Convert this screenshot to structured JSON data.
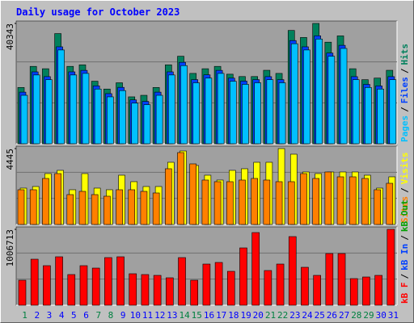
{
  "chart_data": [
    {
      "type": "bar",
      "title": "Daily usage for October 2023",
      "ylim": [
        0,
        40343
      ],
      "yticks": [
        40343
      ],
      "legend_separator": "/",
      "series": [
        {
          "name": "Hits",
          "color": "#00805c",
          "values": [
            18860,
            25940,
            25150,
            36940,
            25940,
            26460,
            20960,
            18340,
            20440,
            15720,
            16240,
            18860,
            26460,
            29340,
            23580,
            25150,
            25940,
            23320,
            22530,
            22530,
            24630,
            23580,
            37990,
            35630,
            40343,
            34060,
            36160,
            25150,
            21480,
            22010,
            24630
          ]
        },
        {
          "name": "Files",
          "color": "#0040ff",
          "values": [
            17300,
            24100,
            22500,
            32500,
            24100,
            24600,
            19400,
            16800,
            18900,
            14700,
            14200,
            17300,
            24100,
            27300,
            21500,
            23100,
            24600,
            22000,
            21000,
            21500,
            22500,
            21500,
            34600,
            32500,
            36200,
            30400,
            33000,
            22500,
            19900,
            19400,
            22500
          ]
        },
        {
          "name": "Pages",
          "color": "#00c0ff",
          "values": [
            16240,
            23060,
            21480,
            31440,
            23060,
            23580,
            18340,
            15720,
            17820,
            13620,
            13100,
            16240,
            23060,
            26200,
            20440,
            22010,
            23580,
            20960,
            19910,
            20440,
            21480,
            20440,
            33540,
            31440,
            35110,
            29340,
            31960,
            21480,
            18860,
            18340,
            21480
          ]
        }
      ]
    },
    {
      "type": "bar",
      "ylim": [
        0,
        4445
      ],
      "yticks": [
        4445
      ],
      "legend_separator": "/",
      "series": [
        {
          "name": "Visits",
          "color": "#ffff00",
          "values": [
            2129,
            2223,
            2980,
            3169,
            2034,
            2980,
            2129,
            2034,
            2885,
            2507,
            2223,
            2223,
            3642,
            4304,
            3453,
            2885,
            2602,
            3169,
            3264,
            3642,
            3642,
            4445,
            4115,
            3075,
            2980,
            3075,
            3075,
            3075,
            2885,
            2129,
            2791
          ]
        },
        {
          "name": "Sites",
          "color": "#ff8000",
          "values": [
            2034,
            2034,
            2696,
            2980,
            1750,
            1939,
            1750,
            1656,
            2034,
            2034,
            1939,
            1845,
            3264,
            4210,
            3548,
            2602,
            2507,
            2507,
            2602,
            2696,
            2602,
            2507,
            2507,
            2980,
            2696,
            3075,
            2791,
            2791,
            2696,
            2034,
            2412
          ]
        }
      ]
    },
    {
      "type": "bar",
      "ylim": [
        0,
        1006713
      ],
      "yticks": [
        1006713
      ],
      "legend_separator": "/",
      "series": [
        {
          "name": "kB F",
          "color": "#ff0000",
          "values": [
            332010,
            610470,
            524790,
            642600,
            406980,
            524790,
            492660,
            631890,
            642600,
            417690,
            406980,
            396270,
            364140,
            631890,
            332010,
            546210,
            567630,
            449820,
            760410,
            963900,
            460530,
            546210,
            910350,
            503370,
            396270,
            685440,
            685440,
            353430,
            374850,
            396270,
            1006713
          ]
        }
      ],
      "extra_legend": [
        {
          "name": "kB In",
          "color": "#0040ff"
        },
        {
          "name": "kB Out",
          "color": "#00a000"
        }
      ],
      "categories": [
        "1",
        "2",
        "3",
        "4",
        "5",
        "6",
        "7",
        "8",
        "9",
        "10",
        "11",
        "12",
        "13",
        "14",
        "15",
        "16",
        "17",
        "18",
        "19",
        "20",
        "21",
        "22",
        "23",
        "24",
        "25",
        "26",
        "27",
        "28",
        "29",
        "30",
        "31"
      ],
      "category_colors": [
        "#008040",
        "#0000ff",
        "#0000ff",
        "#0000ff",
        "#0000ff",
        "#0000ff",
        "#008040",
        "#008040",
        "#0000ff",
        "#0000ff",
        "#0000ff",
        "#0000ff",
        "#0000ff",
        "#008040",
        "#008040",
        "#0000ff",
        "#0000ff",
        "#0000ff",
        "#0000ff",
        "#0000ff",
        "#008040",
        "#008040",
        "#0000ff",
        "#0000ff",
        "#0000ff",
        "#0000ff",
        "#0000ff",
        "#008040",
        "#008040",
        "#0000ff",
        "#0000ff"
      ]
    }
  ]
}
